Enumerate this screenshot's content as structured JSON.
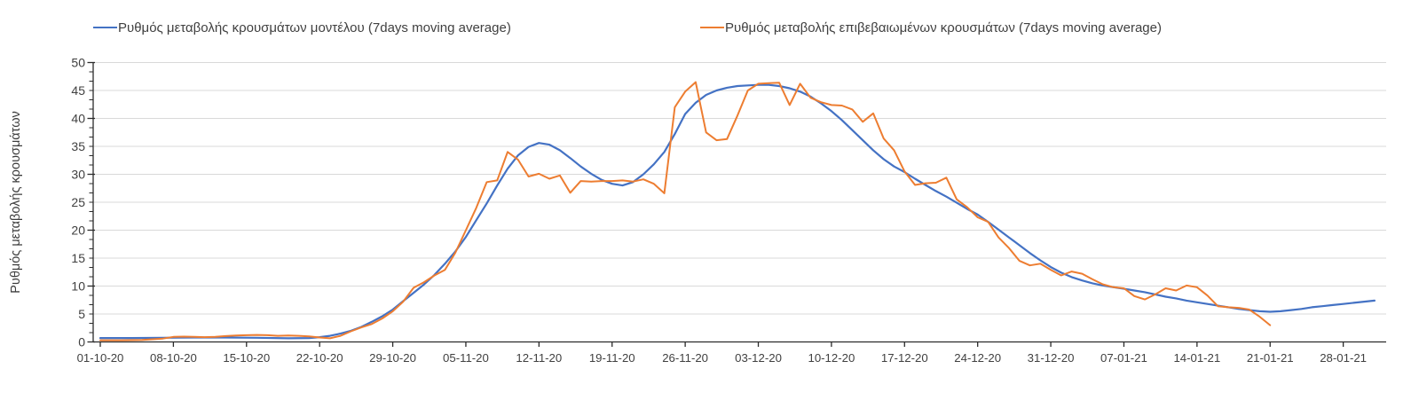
{
  "chart_data": {
    "type": "line",
    "title": "",
    "xlabel": "",
    "ylabel": "Ρυθμός μεταβολής κρουσμάτων",
    "ylim": [
      0,
      50
    ],
    "ytick_step": 5,
    "grid": "horizontal",
    "grid_color": "#D9D9D9",
    "axis_color": "#2b2b2b",
    "tick_label_color": "#404040",
    "legend_position": "top",
    "x_axis_unit": "days since 01-10-2020",
    "x_ticks": [
      {
        "day": 0,
        "label": "01-10-20"
      },
      {
        "day": 7,
        "label": "08-10-20"
      },
      {
        "day": 14,
        "label": "15-10-20"
      },
      {
        "day": 21,
        "label": "22-10-20"
      },
      {
        "day": 28,
        "label": "29-10-20"
      },
      {
        "day": 35,
        "label": "05-11-20"
      },
      {
        "day": 42,
        "label": "12-11-20"
      },
      {
        "day": 49,
        "label": "19-11-20"
      },
      {
        "day": 56,
        "label": "26-11-20"
      },
      {
        "day": 63,
        "label": "03-12-20"
      },
      {
        "day": 70,
        "label": "10-12-20"
      },
      {
        "day": 77,
        "label": "17-12-20"
      },
      {
        "day": 84,
        "label": "24-12-20"
      },
      {
        "day": 91,
        "label": "31-12-20"
      },
      {
        "day": 98,
        "label": "07-01-21"
      },
      {
        "day": 105,
        "label": "14-01-21"
      },
      {
        "day": 112,
        "label": "21-01-21"
      },
      {
        "day": 119,
        "label": "28-01-21"
      }
    ],
    "series": [
      {
        "name": "Ρυθμός μεταβολής κρουσμάτων μοντέλου (7days moving average)",
        "color": "#4472C4",
        "points": [
          [
            0,
            0.7
          ],
          [
            3,
            0.7
          ],
          [
            6,
            0.75
          ],
          [
            9,
            0.8
          ],
          [
            12,
            0.8
          ],
          [
            15,
            0.75
          ],
          [
            18,
            0.65
          ],
          [
            20,
            0.7
          ],
          [
            21,
            0.85
          ],
          [
            22,
            1.1
          ],
          [
            23,
            1.5
          ],
          [
            24,
            2.0
          ],
          [
            25,
            2.7
          ],
          [
            26,
            3.6
          ],
          [
            27,
            4.6
          ],
          [
            28,
            5.8
          ],
          [
            29,
            7.3
          ],
          [
            30,
            8.8
          ],
          [
            31,
            10.3
          ],
          [
            32,
            12.0
          ],
          [
            33,
            14.0
          ],
          [
            34,
            16.2
          ],
          [
            35,
            18.8
          ],
          [
            36,
            21.8
          ],
          [
            37,
            24.8
          ],
          [
            38,
            28.0
          ],
          [
            39,
            31.0
          ],
          [
            40,
            33.4
          ],
          [
            41,
            34.9
          ],
          [
            42,
            35.6
          ],
          [
            43,
            35.3
          ],
          [
            44,
            34.3
          ],
          [
            45,
            32.9
          ],
          [
            46,
            31.4
          ],
          [
            47,
            30.1
          ],
          [
            48,
            29.0
          ],
          [
            49,
            28.3
          ],
          [
            50,
            28.0
          ],
          [
            51,
            28.6
          ],
          [
            52,
            30.0
          ],
          [
            53,
            31.8
          ],
          [
            54,
            34.0
          ],
          [
            55,
            37.2
          ],
          [
            56,
            40.8
          ],
          [
            57,
            42.8
          ],
          [
            58,
            44.2
          ],
          [
            59,
            45.0
          ],
          [
            60,
            45.5
          ],
          [
            61,
            45.8
          ],
          [
            62,
            45.9
          ],
          [
            63,
            46.0
          ],
          [
            64,
            46.0
          ],
          [
            65,
            45.8
          ],
          [
            66,
            45.4
          ],
          [
            67,
            44.8
          ],
          [
            68,
            43.9
          ],
          [
            69,
            42.7
          ],
          [
            70,
            41.3
          ],
          [
            71,
            39.7
          ],
          [
            72,
            37.9
          ],
          [
            73,
            36.1
          ],
          [
            74,
            34.3
          ],
          [
            75,
            32.7
          ],
          [
            76,
            31.4
          ],
          [
            77,
            30.4
          ],
          [
            78,
            29.2
          ],
          [
            79,
            28.1
          ],
          [
            80,
            27.0
          ],
          [
            81,
            26.0
          ],
          [
            82,
            24.9
          ],
          [
            83,
            23.8
          ],
          [
            84,
            22.8
          ],
          [
            85,
            21.5
          ],
          [
            86,
            20.1
          ],
          [
            87,
            18.7
          ],
          [
            88,
            17.3
          ],
          [
            89,
            15.9
          ],
          [
            90,
            14.6
          ],
          [
            91,
            13.4
          ],
          [
            92,
            12.4
          ],
          [
            93,
            11.6
          ],
          [
            94,
            11.0
          ],
          [
            95,
            10.5
          ],
          [
            96,
            10.1
          ],
          [
            97,
            9.8
          ],
          [
            98,
            9.5
          ],
          [
            99,
            9.2
          ],
          [
            100,
            8.9
          ],
          [
            101,
            8.5
          ],
          [
            102,
            8.1
          ],
          [
            103,
            7.8
          ],
          [
            104,
            7.4
          ],
          [
            105,
            7.1
          ],
          [
            106,
            6.8
          ],
          [
            107,
            6.5
          ],
          [
            108,
            6.2
          ],
          [
            109,
            5.9
          ],
          [
            110,
            5.7
          ],
          [
            111,
            5.5
          ],
          [
            112,
            5.4
          ],
          [
            113,
            5.5
          ],
          [
            114,
            5.7
          ],
          [
            115,
            5.9
          ],
          [
            116,
            6.2
          ],
          [
            117,
            6.4
          ],
          [
            118,
            6.6
          ],
          [
            119,
            6.8
          ],
          [
            120,
            7.0
          ],
          [
            121,
            7.2
          ],
          [
            122,
            7.4
          ]
        ]
      },
      {
        "name": "Ρυθμός μεταβολής επιβεβαιωμένων κρουσμάτων (7days moving average)",
        "color": "#ED7D31",
        "points": [
          [
            0,
            0.3
          ],
          [
            2,
            0.3
          ],
          [
            4,
            0.35
          ],
          [
            6,
            0.6
          ],
          [
            7,
            0.9
          ],
          [
            8,
            0.95
          ],
          [
            9,
            0.9
          ],
          [
            10,
            0.85
          ],
          [
            11,
            0.9
          ],
          [
            12,
            1.05
          ],
          [
            13,
            1.15
          ],
          [
            14,
            1.2
          ],
          [
            15,
            1.25
          ],
          [
            16,
            1.2
          ],
          [
            17,
            1.1
          ],
          [
            18,
            1.15
          ],
          [
            19,
            1.1
          ],
          [
            20,
            1.0
          ],
          [
            21,
            0.8
          ],
          [
            22,
            0.65
          ],
          [
            23,
            1.1
          ],
          [
            24,
            1.9
          ],
          [
            25,
            2.6
          ],
          [
            26,
            3.2
          ],
          [
            27,
            4.2
          ],
          [
            28,
            5.5
          ],
          [
            29,
            7.2
          ],
          [
            30,
            9.7
          ],
          [
            31,
            10.7
          ],
          [
            32,
            11.9
          ],
          [
            33,
            12.9
          ],
          [
            34,
            16.0
          ],
          [
            35,
            20.0
          ],
          [
            36,
            24.0
          ],
          [
            37,
            28.6
          ],
          [
            38,
            28.9
          ],
          [
            39,
            34.0
          ],
          [
            40,
            32.6
          ],
          [
            41,
            29.6
          ],
          [
            42,
            30.1
          ],
          [
            43,
            29.2
          ],
          [
            44,
            29.8
          ],
          [
            45,
            26.7
          ],
          [
            46,
            28.8
          ],
          [
            47,
            28.7
          ],
          [
            48,
            28.8
          ],
          [
            49,
            28.8
          ],
          [
            50,
            28.9
          ],
          [
            51,
            28.7
          ],
          [
            52,
            29.1
          ],
          [
            53,
            28.3
          ],
          [
            54,
            26.6
          ],
          [
            55,
            42.0
          ],
          [
            56,
            44.8
          ],
          [
            57,
            46.5
          ],
          [
            58,
            37.5
          ],
          [
            59,
            36.1
          ],
          [
            60,
            36.3
          ],
          [
            61,
            40.5
          ],
          [
            62,
            45.0
          ],
          [
            63,
            46.2
          ],
          [
            64,
            46.3
          ],
          [
            65,
            46.4
          ],
          [
            66,
            42.4
          ],
          [
            67,
            46.2
          ],
          [
            68,
            43.7
          ],
          [
            69,
            42.9
          ],
          [
            70,
            42.4
          ],
          [
            71,
            42.3
          ],
          [
            72,
            41.6
          ],
          [
            73,
            39.4
          ],
          [
            74,
            40.9
          ],
          [
            75,
            36.4
          ],
          [
            76,
            34.3
          ],
          [
            77,
            30.5
          ],
          [
            78,
            28.1
          ],
          [
            79,
            28.4
          ],
          [
            80,
            28.5
          ],
          [
            81,
            29.4
          ],
          [
            82,
            25.5
          ],
          [
            83,
            24.1
          ],
          [
            84,
            22.3
          ],
          [
            85,
            21.5
          ],
          [
            86,
            18.7
          ],
          [
            87,
            16.8
          ],
          [
            88,
            14.5
          ],
          [
            89,
            13.7
          ],
          [
            90,
            14.0
          ],
          [
            91,
            12.9
          ],
          [
            92,
            11.9
          ],
          [
            93,
            12.6
          ],
          [
            94,
            12.2
          ],
          [
            95,
            11.2
          ],
          [
            96,
            10.3
          ],
          [
            97,
            9.8
          ],
          [
            98,
            9.6
          ],
          [
            99,
            8.2
          ],
          [
            100,
            7.6
          ],
          [
            101,
            8.5
          ],
          [
            102,
            9.6
          ],
          [
            103,
            9.2
          ],
          [
            104,
            10.1
          ],
          [
            105,
            9.8
          ],
          [
            106,
            8.3
          ],
          [
            107,
            6.4
          ],
          [
            108,
            6.2
          ],
          [
            109,
            6.1
          ],
          [
            110,
            5.8
          ],
          [
            111,
            4.5
          ],
          [
            112,
            3.0
          ]
        ]
      }
    ]
  }
}
